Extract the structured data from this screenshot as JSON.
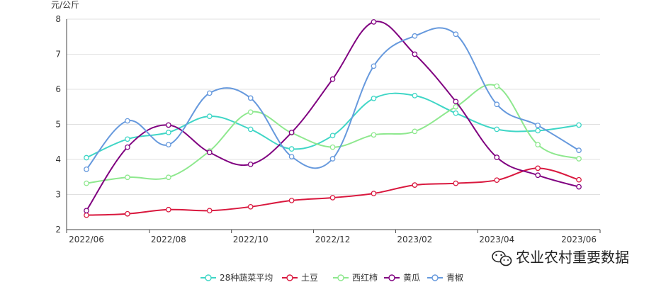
{
  "chart_data": {
    "type": "line",
    "unit_label": "元/公斤",
    "ylim": [
      2,
      8
    ],
    "yticks": [
      2,
      3,
      4,
      5,
      6,
      7,
      8
    ],
    "x_tick_labels": [
      "2022/06",
      "2022/08",
      "2022/10",
      "2022/12",
      "2023/02",
      "2023/04",
      "2023/06"
    ],
    "grid": true,
    "legend_position": "bottom-center",
    "series": [
      {
        "name": "28种蔬菜平均",
        "color": "#3fd6c6",
        "values": [
          4.05,
          4.58,
          4.77,
          5.23,
          4.86,
          4.3,
          4.68,
          5.74,
          5.82,
          5.32,
          4.86,
          4.82,
          4.98
        ]
      },
      {
        "name": "土豆",
        "color": "#d9183e",
        "values": [
          2.41,
          2.45,
          2.57,
          2.54,
          2.65,
          2.83,
          2.91,
          3.03,
          3.27,
          3.32,
          3.41,
          3.75,
          3.42
        ]
      },
      {
        "name": "西红柿",
        "color": "#8ee88e",
        "values": [
          3.32,
          3.49,
          3.49,
          4.24,
          5.35,
          4.76,
          4.35,
          4.7,
          4.8,
          5.5,
          6.09,
          4.42,
          4.02
        ]
      },
      {
        "name": "黄瓜",
        "color": "#800080",
        "values": [
          2.54,
          4.35,
          4.98,
          4.2,
          3.86,
          4.77,
          6.29,
          7.92,
          7.0,
          5.65,
          4.06,
          3.55,
          3.22
        ]
      },
      {
        "name": "青椒",
        "color": "#6699dd",
        "values": [
          3.72,
          5.1,
          4.42,
          5.89,
          5.75,
          4.08,
          4.02,
          6.66,
          7.52,
          7.57,
          5.57,
          4.97,
          4.26
        ]
      }
    ]
  },
  "watermark": {
    "text": "农业农村重要数据",
    "icon": "wechat-icon"
  }
}
